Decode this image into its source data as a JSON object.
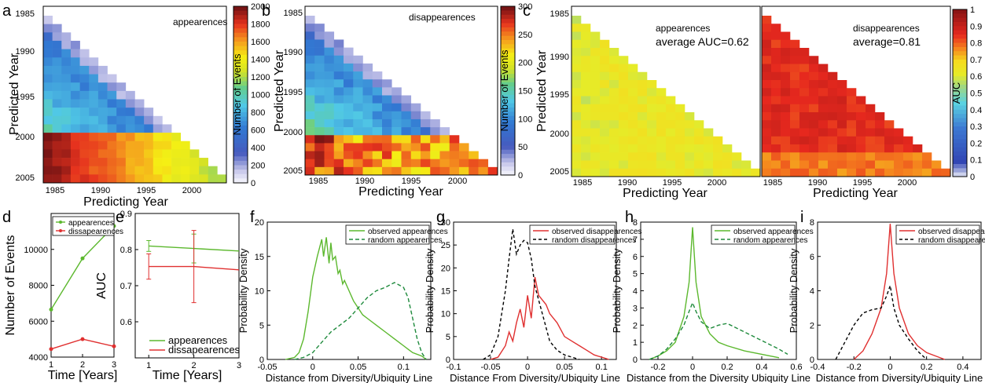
{
  "figure": {
    "panel_letters": [
      "a",
      "b",
      "c",
      "d",
      "e",
      "f",
      "g",
      "h",
      "i"
    ]
  },
  "colors": {
    "appearances": "#5cb82e",
    "disappearances": "#e03030",
    "random": "#000000",
    "random_app": "#1e8a3c"
  },
  "chart_data": [
    {
      "panel": "a",
      "type": "heatmap",
      "annotation": "appearences",
      "xlabel": "Predicting Year",
      "ylabel": "Predicted Year",
      "xticks": [
        "1985",
        "1990",
        "1995",
        "2000"
      ],
      "yticks": [
        "1985",
        "1990",
        "1995",
        "2000",
        "2005"
      ],
      "colorbar": {
        "label": "Number of Events",
        "range": [
          0,
          2000
        ],
        "ticks": [
          "2000",
          "1800",
          "1600",
          "1400",
          "1200",
          "1000",
          "800",
          "600",
          "400",
          "200",
          "0"
        ]
      },
      "pattern": "lower-left triangle; predicted years 1999-2005 rows high (red, ~1500-2000); predicted years 1986-1998 low to mid (blue to cyan, ~300-800)"
    },
    {
      "panel": "b",
      "type": "heatmap",
      "annotation": "disappearences",
      "xlabel": "Predicting Year",
      "ylabel": "Predicted Year",
      "xticks": [
        "1985",
        "1990",
        "1995",
        "2000"
      ],
      "yticks": [
        "1985",
        "1990",
        "1995",
        "2000",
        "2005"
      ],
      "colorbar": {
        "label": "Number of Events",
        "range": [
          0,
          300
        ],
        "ticks": [
          "300",
          "250",
          "200",
          "150",
          "100",
          "50",
          "0"
        ]
      },
      "pattern": "lower-left triangle; predicted years 2000-2005 rows high (orange-red, ~200-300); earlier rows blue to cyan (~50-130)"
    },
    {
      "panel": "c",
      "type": "heatmap",
      "annotation_left": [
        "appearences",
        "average AUC=0.62"
      ],
      "annotation_right": [
        "disappearences",
        "average=0.81"
      ],
      "xlabel": "Predicting Year",
      "ylabel": "Predicted Year",
      "xticks": [
        "1985",
        "1990",
        "1995",
        "2000"
      ],
      "yticks": [
        "1985",
        "1990",
        "1995",
        "2000",
        "2005"
      ],
      "colorbar": {
        "label": "AUC",
        "range": [
          0,
          1
        ],
        "ticks": [
          "1",
          "0.9",
          "0.8",
          "0.7",
          "0.6",
          "0.5",
          "0.4",
          "0.3",
          "0.2",
          "0.1",
          "0"
        ]
      },
      "pattern": "left map mostly yellow (AUC ~0.6); right map mostly red (AUC ~0.8-0.9)"
    },
    {
      "panel": "d",
      "type": "line",
      "xlabel": "Time [Years]",
      "ylabel": "Number of Events",
      "xlim": [
        1,
        3
      ],
      "ylim": [
        4000,
        12000
      ],
      "xticks": [
        "1",
        "2",
        "3"
      ],
      "yticks": [
        "4000",
        "6000",
        "8000",
        "10000"
      ],
      "x": [
        1,
        2,
        3
      ],
      "series": [
        {
          "name": "appearences",
          "values": [
            6650,
            9500,
            11300
          ]
        },
        {
          "name": "dissapearences",
          "values": [
            4450,
            5000,
            4600
          ]
        }
      ]
    },
    {
      "panel": "e",
      "type": "line",
      "xlabel": "Time [Years]",
      "ylabel": "AUC",
      "xlim": [
        0.7,
        3
      ],
      "ylim": [
        0.5,
        0.9
      ],
      "xticks": [
        "1",
        "2",
        "3"
      ],
      "yticks": [
        "0.6",
        "0.7",
        "0.8",
        "0.9"
      ],
      "x": [
        1,
        2,
        3
      ],
      "series": [
        {
          "name": "appearences",
          "values": [
            0.81,
            0.803,
            0.796
          ],
          "errors": [
            0.015,
            0.04,
            0
          ]
        },
        {
          "name": "dissapearences",
          "values": [
            0.753,
            0.753,
            0.744
          ],
          "errors": [
            0.035,
            0.1,
            0
          ]
        }
      ]
    },
    {
      "panel": "f",
      "type": "line",
      "xlabel": "Distance from Diversity/Ubiquity Line",
      "ylabel": "Probability Density",
      "xlim": [
        -0.05,
        0.13
      ],
      "ylim": [
        0,
        20
      ],
      "xticks": [
        "-0.05",
        "0",
        "0.05",
        "0.1"
      ],
      "yticks": [
        "0",
        "5",
        "10",
        "15",
        "20"
      ],
      "series": [
        {
          "name": "observed appearences",
          "x": [
            -0.03,
            -0.02,
            -0.015,
            -0.01,
            -0.005,
            0,
            0.005,
            0.01,
            0.012,
            0.015,
            0.018,
            0.02,
            0.022,
            0.025,
            0.028,
            0.03,
            0.033,
            0.035,
            0.04,
            0.045,
            0.05,
            0.055,
            0.06,
            0.07,
            0.08,
            0.09,
            0.1,
            0.105,
            0.11,
            0.12,
            0.125
          ],
          "values": [
            0,
            0.3,
            1,
            3,
            7,
            12,
            15,
            17.5,
            15,
            17.8,
            14,
            17,
            14.5,
            15,
            12.5,
            13,
            11,
            11.5,
            10,
            8.5,
            7.5,
            6.5,
            6,
            5,
            4,
            3,
            2,
            1.5,
            1,
            0.5,
            0
          ]
        },
        {
          "name": "random appearences",
          "x": [
            -0.02,
            -0.01,
            0,
            0.01,
            0.02,
            0.03,
            0.04,
            0.05,
            0.06,
            0.07,
            0.08,
            0.09,
            0.1,
            0.105,
            0.11,
            0.115,
            0.12,
            0.125
          ],
          "values": [
            0,
            0.3,
            1,
            2.5,
            4,
            5,
            6,
            7.5,
            9,
            10,
            10.5,
            11.2,
            10.5,
            9,
            6,
            3,
            1,
            0
          ]
        }
      ]
    },
    {
      "panel": "g",
      "type": "line",
      "xlabel": "Distance From Diversity/Ubiquity Line",
      "ylabel": "Probability Density",
      "xlim": [
        -0.1,
        0.12
      ],
      "ylim": [
        0,
        30
      ],
      "xticks": [
        "-0.1",
        "-0.05",
        "0",
        "0.05",
        "0.1"
      ],
      "yticks": [
        "0",
        "5",
        "10",
        "15",
        "20",
        "25",
        "30"
      ],
      "series": [
        {
          "name": "observed disappearences",
          "x": [
            -0.05,
            -0.04,
            -0.03,
            -0.025,
            -0.02,
            -0.015,
            -0.01,
            -0.005,
            0,
            0.005,
            0.01,
            0.015,
            0.02,
            0.025,
            0.03,
            0.04,
            0.05,
            0.06,
            0.07,
            0.08,
            0.09,
            0.1,
            0.11
          ],
          "values": [
            0,
            0.5,
            3,
            6,
            4,
            8,
            11,
            7,
            14,
            9,
            18,
            14,
            13,
            12,
            10,
            8,
            5,
            4,
            3,
            2,
            1,
            0.5,
            0
          ]
        },
        {
          "name": "random disappearences",
          "x": [
            -0.06,
            -0.05,
            -0.04,
            -0.035,
            -0.03,
            -0.025,
            -0.02,
            -0.015,
            -0.01,
            -0.005,
            0,
            0.005,
            0.01,
            0.02,
            0.03,
            0.04,
            0.05,
            0.06,
            0.07
          ],
          "values": [
            0,
            1,
            5,
            10,
            15,
            22,
            28.5,
            23,
            25,
            26,
            25.5,
            22,
            16,
            10,
            4,
            2,
            1,
            0.5,
            0
          ]
        }
      ]
    },
    {
      "panel": "h",
      "type": "line",
      "xlabel": "Distance from the Diversity Ubiquity Line",
      "ylabel": "Probability Density",
      "xlim": [
        -0.3,
        0.6
      ],
      "ylim": [
        0,
        8
      ],
      "xticks": [
        "-0.2",
        "0",
        "0.2",
        "0.4",
        "0.6"
      ],
      "yticks": [
        "0",
        "1",
        "2",
        "3",
        "4",
        "5",
        "6",
        "7",
        "8"
      ],
      "series": [
        {
          "name": "observed appearences",
          "x": [
            -0.25,
            -0.2,
            -0.15,
            -0.1,
            -0.05,
            -0.02,
            0,
            0.02,
            0.05,
            0.1,
            0.15,
            0.2,
            0.3,
            0.4,
            0.5
          ],
          "values": [
            0,
            0.2,
            0.5,
            1,
            2.5,
            4.5,
            7.7,
            4.5,
            2.5,
            1.5,
            1,
            0.8,
            0.5,
            0.3,
            0.1
          ]
        },
        {
          "name": "random appearences",
          "x": [
            -0.25,
            -0.2,
            -0.15,
            -0.1,
            -0.05,
            -0.02,
            0,
            0.02,
            0.05,
            0.1,
            0.15,
            0.2,
            0.3,
            0.4,
            0.5,
            0.55
          ],
          "values": [
            0,
            0.2,
            0.6,
            1.2,
            2,
            2.8,
            3.3,
            2.8,
            2.2,
            1.8,
            2,
            2.1,
            1.6,
            1.1,
            0.6,
            0.3
          ]
        }
      ]
    },
    {
      "panel": "i",
      "type": "line",
      "xlabel": "Distance from Diversity/Ubiquity Line",
      "ylabel": "Probability Density",
      "xlim": [
        -0.4,
        0.5
      ],
      "ylim": [
        0,
        8
      ],
      "xticks": [
        "-0.4",
        "-0.2",
        "0",
        "0.2",
        "0.4"
      ],
      "yticks": [
        "0",
        "2",
        "4",
        "6",
        "8"
      ],
      "series": [
        {
          "name": "observed disappearences",
          "x": [
            -0.2,
            -0.15,
            -0.1,
            -0.05,
            -0.02,
            0,
            0.02,
            0.05,
            0.1,
            0.15,
            0.2,
            0.25,
            0.3
          ],
          "values": [
            0,
            0.5,
            1.5,
            3,
            5,
            7.9,
            5,
            3,
            1.5,
            0.8,
            0.4,
            0.2,
            0
          ]
        },
        {
          "name": "random disappearences",
          "x": [
            -0.3,
            -0.25,
            -0.2,
            -0.15,
            -0.1,
            -0.05,
            -0.02,
            0,
            0.02,
            0.05,
            0.1,
            0.15,
            0.2
          ],
          "values": [
            0,
            1,
            2,
            2.7,
            2.9,
            3,
            3.7,
            4.3,
            3,
            2,
            1.2,
            0.5,
            0
          ]
        }
      ]
    }
  ]
}
